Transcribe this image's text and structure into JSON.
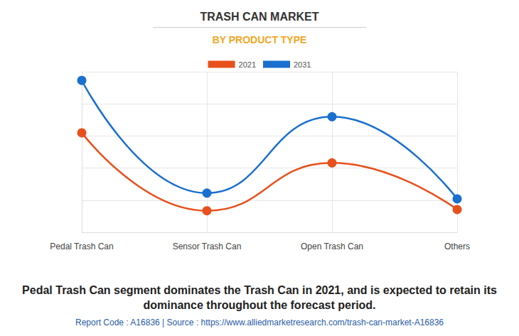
{
  "chart_data": {
    "type": "line",
    "title": "TRASH CAN MARKET",
    "subtitle": "BY PRODUCT TYPE",
    "categories": [
      "Pedal Trash Can",
      "Sensor Trash Can",
      "Open Trash Can",
      "Others"
    ],
    "series": [
      {
        "name": "2021",
        "color": "#e8511d",
        "values": [
          3.1,
          0.67,
          2.16,
          0.71
        ]
      },
      {
        "name": "2031",
        "color": "#1a6fcf",
        "values": [
          4.73,
          1.22,
          3.6,
          1.04
        ]
      }
    ],
    "ylim": [
      0,
      5
    ],
    "yticks": [
      0,
      1,
      2,
      3,
      4,
      5
    ],
    "grid": true,
    "legend": "top",
    "tick_labels": "x",
    "marker": "circle",
    "line_style": "solid",
    "annotations": [
      "Pedal Trash Can segment dominates the Trash Can in 2021, and is expected to retain its dominance throughout the forecast period.",
      "Report Code : A16836  |  Source : https://www.alliedmarketresearch.com/trash-can-market-A16836"
    ]
  }
}
